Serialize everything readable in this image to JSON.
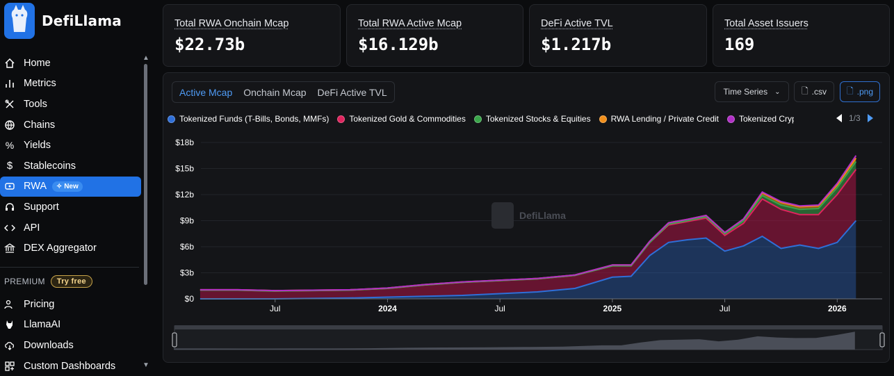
{
  "app": {
    "name": "DefiLlama"
  },
  "sidebar": {
    "items": [
      {
        "label": "Home",
        "icon": "home-icon"
      },
      {
        "label": "Metrics",
        "icon": "bar-chart-icon"
      },
      {
        "label": "Tools",
        "icon": "tools-icon"
      },
      {
        "label": "Chains",
        "icon": "globe-icon"
      },
      {
        "label": "Yields",
        "icon": "percent-icon"
      },
      {
        "label": "Stablecoins",
        "icon": "dollar-icon"
      },
      {
        "label": "RWA",
        "icon": "rwa-icon",
        "badge": "New"
      },
      {
        "label": "Support",
        "icon": "headset-icon"
      },
      {
        "label": "API",
        "icon": "code-icon"
      },
      {
        "label": "DEX Aggregator",
        "icon": "bank-icon"
      }
    ],
    "premium_label": "PREMIUM",
    "try_free": "Try free",
    "premium_items": [
      {
        "label": "Pricing",
        "icon": "users-icon"
      },
      {
        "label": "LlamaAI",
        "icon": "llama-icon"
      },
      {
        "label": "Downloads",
        "icon": "cloud-download-icon"
      },
      {
        "label": "Custom Dashboards",
        "icon": "dashboard-icon"
      }
    ]
  },
  "cards": [
    {
      "label": "Total RWA Onchain Mcap",
      "value": "$22.73b"
    },
    {
      "label": "Total RWA Active Mcap",
      "value": "$16.129b"
    },
    {
      "label": "DeFi Active TVL",
      "value": "$1.217b"
    },
    {
      "label": "Total Asset Issuers",
      "value": "169"
    }
  ],
  "panel": {
    "tabs": [
      "Active Mcap",
      "Onchain Mcap",
      "DeFi Active TVL"
    ],
    "active_tab": "Active Mcap",
    "select": "Time Series",
    "csv": ".csv",
    "png": ".png",
    "pager": "1/3",
    "watermark": "DefiLlama"
  },
  "colors": {
    "accent": "#2172e5",
    "funds": "#2f6fd8",
    "gold": "#e0245e",
    "stocks": "#3aa64a",
    "lending": "#f28f1b",
    "crypto": "#b12fc6"
  },
  "chart_data": {
    "type": "area",
    "stacked": true,
    "yticks": [
      "$0",
      "$3b",
      "$6b",
      "$9b",
      "$12b",
      "$15b",
      "$18b"
    ],
    "ylim": [
      0,
      18
    ],
    "xticks": [
      "Jul",
      "2024",
      "Jul",
      "2025",
      "Jul",
      "2026"
    ],
    "x": [
      "2023-03",
      "2023-05",
      "2023-07",
      "2023-09",
      "2023-11",
      "2024-01",
      "2024-03",
      "2024-05",
      "2024-07",
      "2024-09",
      "2024-11",
      "2025-01",
      "2025-02",
      "2025-03",
      "2025-04",
      "2025-05",
      "2025-06",
      "2025-07",
      "2025-08",
      "2025-09",
      "2025-10",
      "2025-11",
      "2025-12",
      "2026-01",
      "2026-02"
    ],
    "series": [
      {
        "name": "Tokenized Funds (T-Bills, Bonds, MMFs)",
        "values": [
          0.0,
          0.0,
          0.0,
          0.05,
          0.1,
          0.2,
          0.3,
          0.4,
          0.6,
          0.8,
          1.2,
          2.5,
          2.6,
          5.0,
          6.5,
          6.8,
          7.0,
          5.5,
          6.1,
          7.2,
          5.8,
          6.2,
          5.8,
          6.5,
          9.0
        ]
      },
      {
        "name": "Tokenized Gold & Commodities",
        "values": [
          1.0,
          1.0,
          0.9,
          0.9,
          0.9,
          1.0,
          1.3,
          1.5,
          1.5,
          1.5,
          1.5,
          1.3,
          1.2,
          1.5,
          2.0,
          2.1,
          2.3,
          1.8,
          2.6,
          4.3,
          4.5,
          3.5,
          3.9,
          5.5,
          5.9
        ]
      },
      {
        "name": "Tokenized Stocks & Equities",
        "values": [
          0,
          0,
          0,
          0,
          0,
          0,
          0,
          0,
          0,
          0,
          0,
          0,
          0,
          0,
          0.1,
          0.1,
          0.15,
          0.2,
          0.3,
          0.4,
          0.5,
          0.6,
          0.7,
          0.8,
          0.9
        ]
      },
      {
        "name": "RWA Lending / Private Credit",
        "values": [
          0.05,
          0.05,
          0.05,
          0.05,
          0.05,
          0.05,
          0.05,
          0.05,
          0.05,
          0.05,
          0.05,
          0.1,
          0.1,
          0.15,
          0.15,
          0.15,
          0.15,
          0.15,
          0.2,
          0.3,
          0.3,
          0.3,
          0.3,
          0.3,
          0.4
        ]
      },
      {
        "name": "Tokenized Crypto",
        "values": [
          0,
          0,
          0,
          0,
          0,
          0,
          0,
          0,
          0,
          0,
          0,
          0,
          0,
          0,
          0,
          0,
          0,
          0,
          0,
          0.1,
          0.1,
          0.1,
          0.1,
          0.2,
          0.3
        ]
      }
    ]
  }
}
